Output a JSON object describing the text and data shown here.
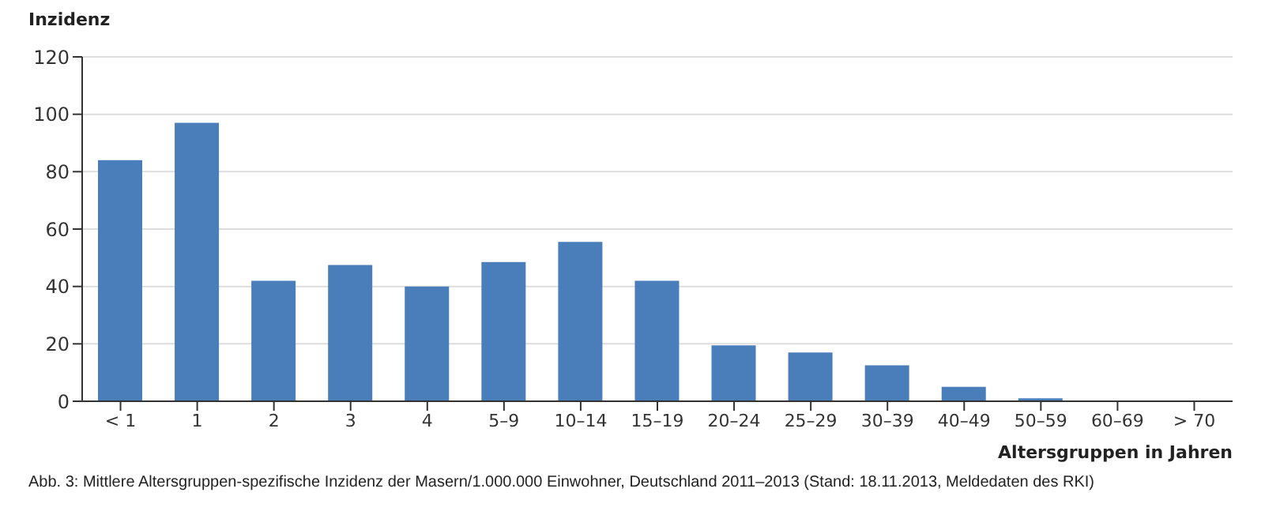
{
  "chart_data": {
    "type": "bar",
    "ylabel": "Inzidenz",
    "xlabel": "Altersgruppen in Jahren",
    "categories": [
      "< 1",
      "1",
      "2",
      "3",
      "4",
      "5–9",
      "10–14",
      "15–19",
      "20–24",
      "25–29",
      "30–39",
      "40–49",
      "50–59",
      "60–69",
      "> 70"
    ],
    "values": [
      84,
      97,
      42,
      47.5,
      40,
      48.5,
      55.5,
      42,
      19.5,
      17,
      12.5,
      5,
      1,
      0,
      0
    ],
    "color": "#4a7ebb",
    "ylim": [
      0,
      120
    ],
    "yticks": [
      0,
      20,
      40,
      60,
      80,
      100,
      120
    ],
    "grid": "y",
    "annotations": [
      "Abb. 3: Mittlere Altersgruppen-spezifische Inzidenz der Masern/1.000.000 Einwohner, Deutschland 2011–2013 (Stand: 18.11.2013, Meldedaten des RKI)"
    ]
  }
}
